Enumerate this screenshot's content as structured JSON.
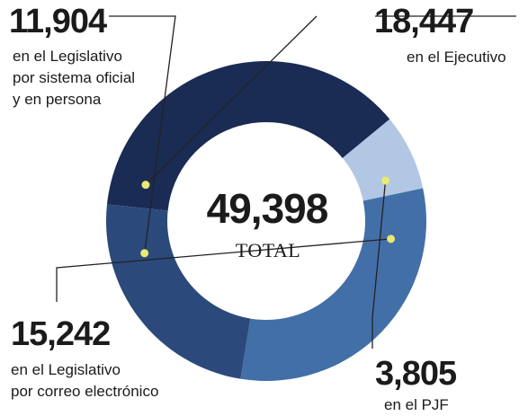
{
  "chart_data": {
    "type": "donut",
    "total": {
      "value": "49,398",
      "label": "TOTAL"
    },
    "series": [
      {
        "value": 18447,
        "value_label": "18,447",
        "description": [
          "en el Ejecutivo"
        ],
        "color": "#1a2c54"
      },
      {
        "value": 3805,
        "value_label": "3,805",
        "description": [
          "en el PJF"
        ],
        "color": "#b1c7e3"
      },
      {
        "value": 15242,
        "value_label": "15,242",
        "description": [
          "en el Legislativo",
          "por correo electrónico"
        ],
        "color": "#436fa8"
      },
      {
        "value": 11904,
        "value_label": "11,904",
        "description": [
          "en el Legislativo",
          "por sistema oficial",
          "y en persona"
        ],
        "color": "#2b4a7b"
      }
    ]
  }
}
